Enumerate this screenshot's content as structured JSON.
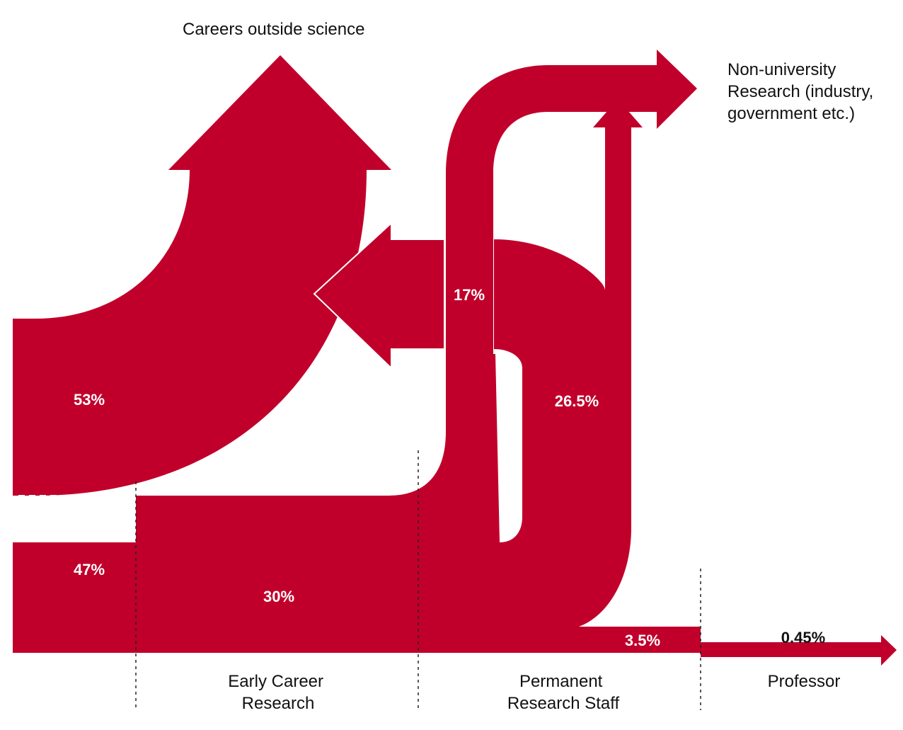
{
  "colors": {
    "flow": "#C0002B",
    "background": "#FFFFFF",
    "text": "#111111"
  },
  "destinations": {
    "outside": "Careers outside science",
    "non_university": [
      "Non-university",
      "Research (industry,",
      "government etc.)"
    ]
  },
  "stages": {
    "early": [
      "Early Career",
      "Research"
    ],
    "permanent": [
      "Permanent",
      "Research Staff"
    ],
    "professor": "Professor"
  },
  "flows": {
    "outside_science": "53%",
    "stay_in_science": "47%",
    "early_to_non_university": "17%",
    "early_to_permanent": "30%",
    "permanent_leaving": "26.5%",
    "permanent_to_professor": "3.5%",
    "professor": "0.45%"
  }
}
